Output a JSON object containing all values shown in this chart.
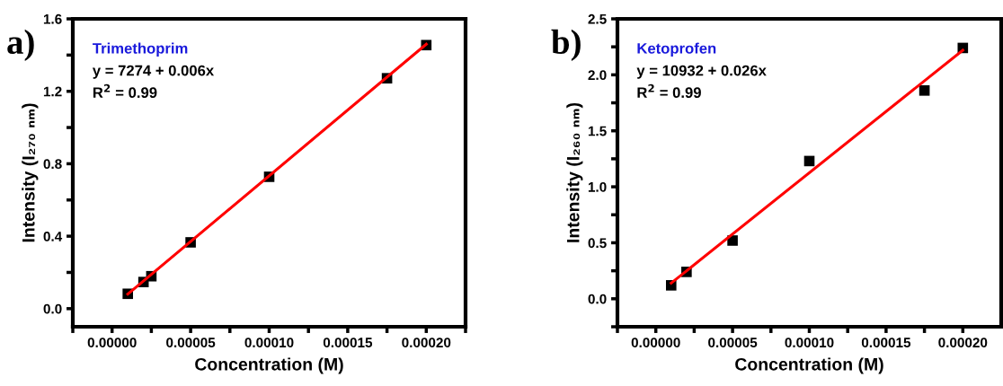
{
  "chart_data": [
    {
      "type": "scatter",
      "title": "a)",
      "xlabel": "Concentration (M)",
      "ylabel": "Intensity (I₂₇₀ ₙₘ)",
      "annotations": [
        "Trimethoprim",
        "y = 7274 + 0.006x",
        "R$^{2}$ = 0.99"
      ],
      "marker": "square",
      "grid": false,
      "legend": false,
      "xlim": [
        -2.5e-05,
        0.000225
      ],
      "ylim": [
        -0.1,
        1.6
      ],
      "xticks": [
        {
          "value": -2.5e-05,
          "label": null
        },
        {
          "value": 0,
          "label": "0.00000"
        },
        {
          "value": 2.5e-05,
          "label": null
        },
        {
          "value": 5e-05,
          "label": "0.00005"
        },
        {
          "value": 7.5e-05,
          "label": null
        },
        {
          "value": 0.0001,
          "label": "0.00010"
        },
        {
          "value": 0.000125,
          "label": null
        },
        {
          "value": 0.00015,
          "label": "0.00015"
        },
        {
          "value": 0.000175,
          "label": null
        },
        {
          "value": 0.0002,
          "label": "0.00020"
        },
        {
          "value": 0.000225,
          "label": null
        }
      ],
      "yticks": [
        {
          "value": 0,
          "label": "0.0"
        },
        {
          "value": 0.2,
          "label": null
        },
        {
          "value": 0.4,
          "label": "0.4"
        },
        {
          "value": 0.6,
          "label": null
        },
        {
          "value": 0.8,
          "label": "0.8"
        },
        {
          "value": 1.0,
          "label": null
        },
        {
          "value": 1.2,
          "label": "1.2"
        },
        {
          "value": 1.4,
          "label": null
        },
        {
          "value": 1.6,
          "label": "1.6"
        }
      ],
      "series": [
        {
          "color": "#000000",
          "x": [
            1e-05,
            2e-05,
            2.5e-05,
            5e-05,
            0.0001,
            0.000175,
            0.0002
          ],
          "values": [
            0.082,
            0.147,
            0.179,
            0.366,
            0.728,
            1.272,
            1.455
          ]
        },
        {
          "type": "line",
          "color": "#ff0000",
          "marker": "none",
          "line_style": "solid",
          "x": [
            1e-05,
            0.0002
          ],
          "values": [
            0.08,
            1.46
          ]
        }
      ]
    },
    {
      "type": "scatter",
      "title": "b)",
      "xlabel": "Concentration (M)",
      "ylabel": "Intensity (I₂₆₀ ₙₘ)",
      "annotations": [
        "Ketoprofen",
        "y = 10932 + 0.026x",
        "R$^{2}$ = 0.99"
      ],
      "marker": "square",
      "grid": false,
      "legend": false,
      "xlim": [
        -2.5e-05,
        0.000225
      ],
      "ylim": [
        -0.25,
        2.5
      ],
      "xticks": [
        {
          "value": -2.5e-05,
          "label": null
        },
        {
          "value": 0,
          "label": "0.00000"
        },
        {
          "value": 2.5e-05,
          "label": null
        },
        {
          "value": 5e-05,
          "label": "0.00005"
        },
        {
          "value": 7.5e-05,
          "label": null
        },
        {
          "value": 0.0001,
          "label": "0.00010"
        },
        {
          "value": 0.000125,
          "label": null
        },
        {
          "value": 0.00015,
          "label": "0.00015"
        },
        {
          "value": 0.000175,
          "label": null
        },
        {
          "value": 0.0002,
          "label": "0.00020"
        }
      ],
      "yticks": [
        {
          "value": -0.25,
          "label": null
        },
        {
          "value": 0,
          "label": "0.0"
        },
        {
          "value": 0.25,
          "label": null
        },
        {
          "value": 0.5,
          "label": "0.5"
        },
        {
          "value": 0.75,
          "label": null
        },
        {
          "value": 1.0,
          "label": "1.0"
        },
        {
          "value": 1.25,
          "label": null
        },
        {
          "value": 1.5,
          "label": "1.5"
        },
        {
          "value": 1.75,
          "label": null
        },
        {
          "value": 2.0,
          "label": "2.0"
        },
        {
          "value": 2.25,
          "label": null
        },
        {
          "value": 2.5,
          "label": "2.5"
        }
      ],
      "series": [
        {
          "color": "#000000",
          "x": [
            1e-05,
            2e-05,
            5e-05,
            0.0001,
            0.000175,
            0.0002
          ],
          "values": [
            0.12,
            0.24,
            0.52,
            1.23,
            1.86,
            2.24
          ]
        },
        {
          "type": "line",
          "color": "#ff0000",
          "marker": "none",
          "line_style": "solid",
          "x": [
            1e-05,
            0.0002
          ],
          "values": [
            0.14,
            2.22
          ]
        }
      ]
    }
  ]
}
